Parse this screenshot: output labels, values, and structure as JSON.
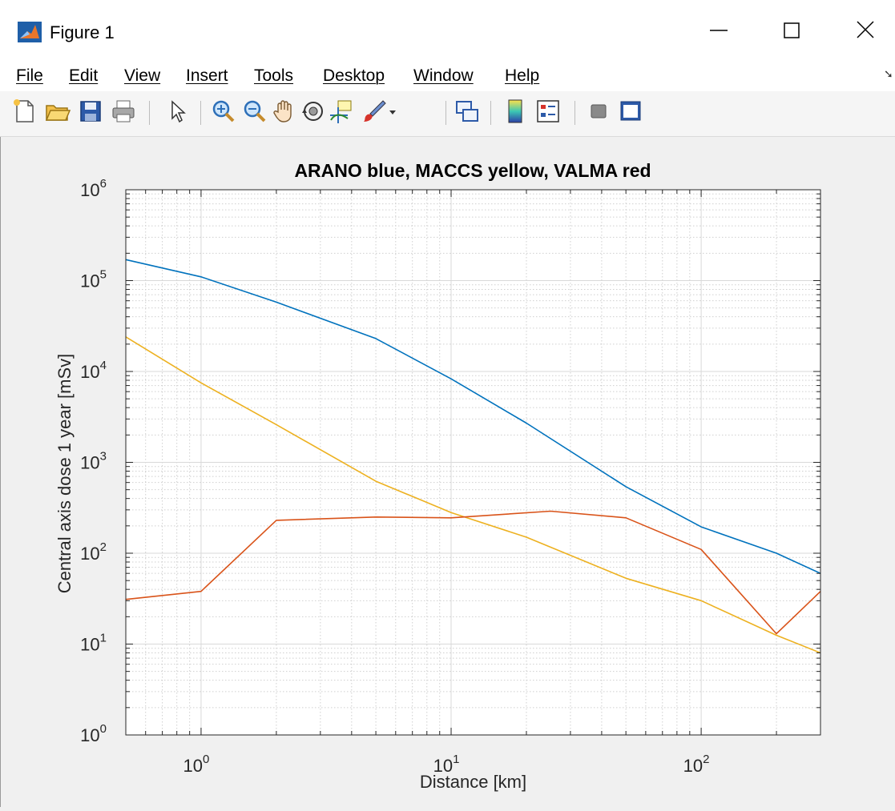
{
  "window": {
    "title": "Figure 1",
    "controls": {
      "minimize": "minimize",
      "maximize": "maximize",
      "close": "close"
    }
  },
  "menu": {
    "items": [
      "File",
      "Edit",
      "View",
      "Insert",
      "Tools",
      "Desktop",
      "Window",
      "Help"
    ]
  },
  "toolbar": {
    "icons": [
      "new-figure-icon",
      "open-file-icon",
      "save-icon",
      "print-icon",
      "pointer-icon",
      "zoom-in-icon",
      "zoom-out-icon",
      "pan-hand-icon",
      "rotate-3d-icon",
      "data-cursor-icon",
      "brush-icon",
      "brush-dropdown-icon",
      "link-plot-icon",
      "colorbar-icon",
      "legend-icon",
      "hide-plot-tools-icon",
      "show-plot-tools-icon"
    ]
  },
  "chart_data": {
    "type": "line",
    "title": "ARANO blue, MACCS yellow, VALMA red",
    "xlabel": "Distance [km]",
    "ylabel": "Central axis dose 1 year [mSv]",
    "xscale": "log",
    "yscale": "log",
    "xlim": [
      0.5,
      300
    ],
    "ylim": [
      1,
      1000000
    ],
    "grid": true,
    "minor_grid": true,
    "x_ticks": [
      {
        "base": "10",
        "exp": "0",
        "value": 1
      },
      {
        "base": "10",
        "exp": "1",
        "value": 10
      },
      {
        "base": "10",
        "exp": "2",
        "value": 100
      }
    ],
    "y_ticks": [
      {
        "base": "10",
        "exp": "0",
        "value": 1
      },
      {
        "base": "10",
        "exp": "1",
        "value": 10
      },
      {
        "base": "10",
        "exp": "2",
        "value": 100
      },
      {
        "base": "10",
        "exp": "3",
        "value": 1000
      },
      {
        "base": "10",
        "exp": "4",
        "value": 10000
      },
      {
        "base": "10",
        "exp": "5",
        "value": 100000
      },
      {
        "base": "10",
        "exp": "6",
        "value": 1000000
      }
    ],
    "series": [
      {
        "color": "#0072bd",
        "points": [
          [
            0.5,
            170000
          ],
          [
            1,
            110000
          ],
          [
            2,
            58000
          ],
          [
            5,
            23000
          ],
          [
            10,
            8300
          ],
          [
            20,
            2700
          ],
          [
            50,
            540
          ],
          [
            100,
            195
          ],
          [
            200,
            100
          ],
          [
            300,
            60
          ]
        ]
      },
      {
        "color": "#edb120",
        "points": [
          [
            0.5,
            24000
          ],
          [
            1,
            7500
          ],
          [
            2,
            2600
          ],
          [
            5,
            620
          ],
          [
            10,
            280
          ],
          [
            20,
            150
          ],
          [
            50,
            53
          ],
          [
            100,
            30
          ],
          [
            200,
            12.5
          ],
          [
            300,
            8
          ]
        ]
      },
      {
        "color": "#d95319",
        "points": [
          [
            0.5,
            31
          ],
          [
            1,
            38
          ],
          [
            2,
            230
          ],
          [
            5,
            250
          ],
          [
            10,
            245
          ],
          [
            25,
            290
          ],
          [
            50,
            245
          ],
          [
            100,
            110
          ],
          [
            200,
            13
          ],
          [
            300,
            38
          ]
        ]
      }
    ]
  }
}
